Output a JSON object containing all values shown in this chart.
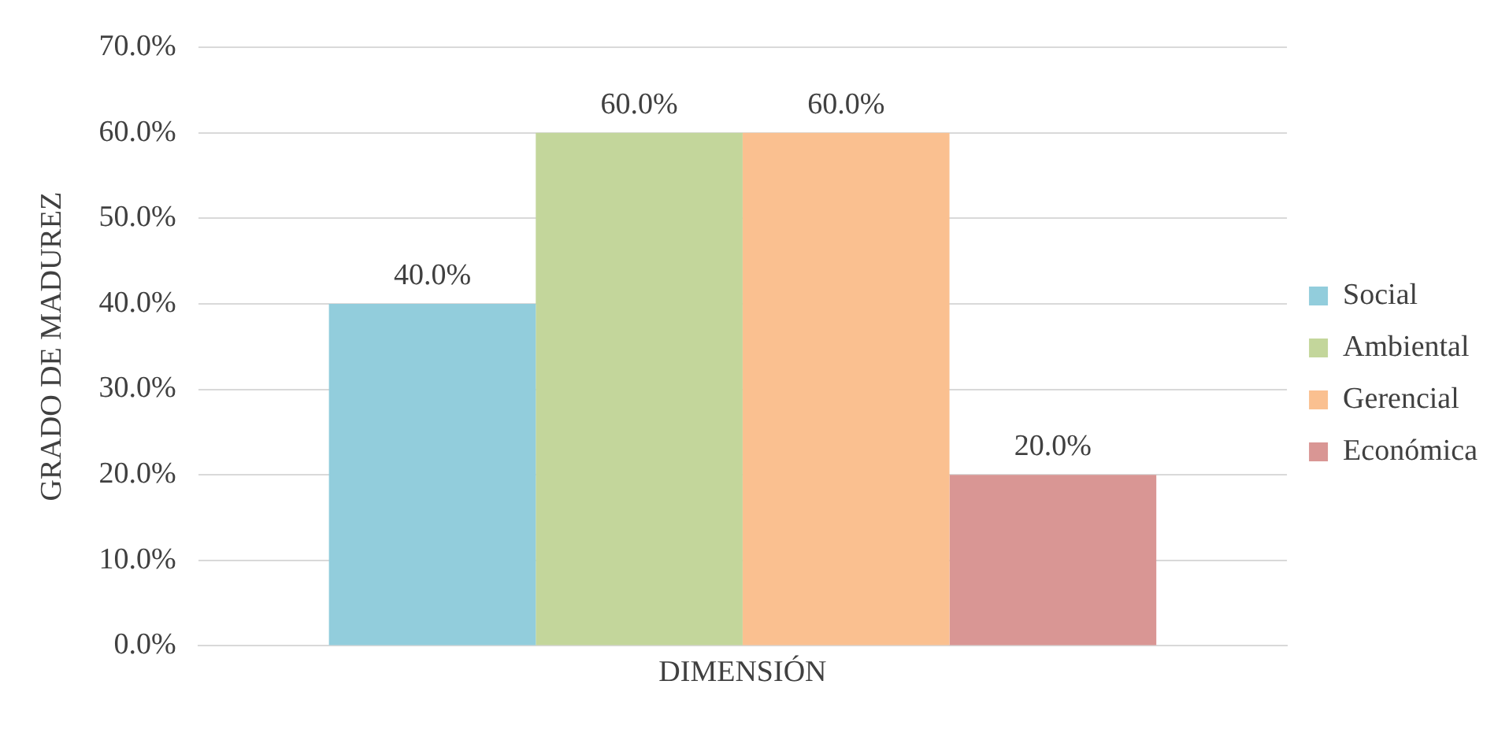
{
  "chart_data": {
    "type": "bar",
    "categories": [
      "DIMENSIÓN"
    ],
    "ylabel": "GRADO DE MADUREZ",
    "series": [
      {
        "name": "Social",
        "color": "#92cddc",
        "values": [
          40
        ],
        "value_labels": [
          "40.0%"
        ]
      },
      {
        "name": "Ambiental",
        "color": "#c3d69b",
        "values": [
          60
        ],
        "value_labels": [
          "60.0%"
        ]
      },
      {
        "name": "Gerencial",
        "color": "#fac090",
        "values": [
          60
        ],
        "value_labels": [
          "60.0%"
        ]
      },
      {
        "name": "Económica",
        "color": "#d99694",
        "values": [
          20
        ],
        "value_labels": [
          "20.0%"
        ]
      }
    ],
    "ylim": [
      0,
      70
    ],
    "yticks": [
      {
        "value": 0,
        "label": "0.0%"
      },
      {
        "value": 10,
        "label": "10.0%"
      },
      {
        "value": 20,
        "label": "20.0%"
      },
      {
        "value": 30,
        "label": "30.0%"
      },
      {
        "value": 40,
        "label": "40.0%"
      },
      {
        "value": 50,
        "label": "50.0%"
      },
      {
        "value": 60,
        "label": "60.0%"
      },
      {
        "value": 70,
        "label": "70.0%"
      }
    ],
    "grid": "y",
    "legend": "right"
  }
}
